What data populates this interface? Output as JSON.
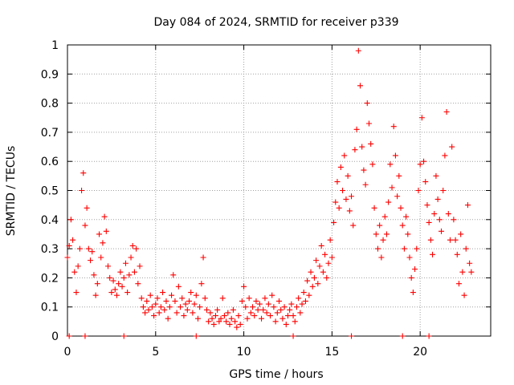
{
  "chart_data": {
    "type": "scatter",
    "title": "Day 084 of 2024, SRMTID for receiver p339",
    "xlabel": "GPS time / hours",
    "ylabel": "SRMTID / TECUs",
    "xlim": [
      0,
      24
    ],
    "ylim": [
      0,
      1
    ],
    "x_ticks": [
      0,
      5,
      10,
      15,
      20
    ],
    "y_ticks": [
      0,
      0.1,
      0.2,
      0.3,
      0.4,
      0.5,
      0.6,
      0.7,
      0.8,
      0.9,
      1
    ],
    "x_tick_labels": [
      "0",
      "5",
      "10",
      "15",
      "20"
    ],
    "y_tick_labels": [
      "0",
      "0.1",
      "0.2",
      "0.3",
      "0.4",
      "0.5",
      "0.6",
      "0.7",
      "0.8",
      "0.9",
      "1"
    ],
    "grid": true,
    "marker": "plus",
    "color": "#ff0000",
    "series": [
      {
        "name": "SRMTID",
        "points": [
          [
            0.0,
            0.27
          ],
          [
            0.1,
            0.31
          ],
          [
            0.2,
            0.4
          ],
          [
            0.3,
            0.33
          ],
          [
            0.4,
            0.22
          ],
          [
            0.5,
            0.15
          ],
          [
            0.6,
            0.24
          ],
          [
            0.7,
            0.3
          ],
          [
            0.8,
            0.5
          ],
          [
            0.9,
            0.56
          ],
          [
            1.0,
            0.38
          ],
          [
            1.1,
            0.44
          ],
          [
            1.2,
            0.3
          ],
          [
            1.3,
            0.26
          ],
          [
            1.4,
            0.29
          ],
          [
            1.5,
            0.21
          ],
          [
            1.6,
            0.14
          ],
          [
            1.7,
            0.18
          ],
          [
            1.8,
            0.35
          ],
          [
            1.9,
            0.27
          ],
          [
            2.0,
            0.32
          ],
          [
            2.1,
            0.41
          ],
          [
            2.2,
            0.36
          ],
          [
            2.3,
            0.24
          ],
          [
            2.4,
            0.2
          ],
          [
            2.5,
            0.15
          ],
          [
            2.6,
            0.19
          ],
          [
            2.7,
            0.16
          ],
          [
            2.8,
            0.14
          ],
          [
            2.9,
            0.18
          ],
          [
            3.0,
            0.22
          ],
          [
            3.1,
            0.17
          ],
          [
            3.2,
            0.2
          ],
          [
            3.3,
            0.25
          ],
          [
            3.4,
            0.15
          ],
          [
            3.5,
            0.21
          ],
          [
            3.6,
            0.27
          ],
          [
            3.7,
            0.31
          ],
          [
            3.8,
            0.22
          ],
          [
            3.9,
            0.3
          ],
          [
            4.0,
            0.18
          ],
          [
            4.1,
            0.24
          ],
          [
            4.2,
            0.13
          ],
          [
            4.3,
            0.1
          ],
          [
            4.4,
            0.08
          ],
          [
            4.5,
            0.12
          ],
          [
            4.6,
            0.09
          ],
          [
            4.7,
            0.14
          ],
          [
            4.8,
            0.1
          ],
          [
            4.9,
            0.07
          ],
          [
            5.0,
            0.11
          ],
          [
            5.1,
            0.13
          ],
          [
            5.2,
            0.08
          ],
          [
            5.3,
            0.1
          ],
          [
            5.4,
            0.15
          ],
          [
            5.5,
            0.09
          ],
          [
            5.6,
            0.12
          ],
          [
            5.7,
            0.06
          ],
          [
            5.8,
            0.1
          ],
          [
            5.9,
            0.14
          ],
          [
            6.0,
            0.21
          ],
          [
            6.1,
            0.12
          ],
          [
            6.2,
            0.08
          ],
          [
            6.3,
            0.17
          ],
          [
            6.4,
            0.1
          ],
          [
            6.5,
            0.13
          ],
          [
            6.6,
            0.07
          ],
          [
            6.7,
            0.11
          ],
          [
            6.8,
            0.09
          ],
          [
            6.9,
            0.12
          ],
          [
            7.0,
            0.15
          ],
          [
            7.1,
            0.08
          ],
          [
            7.2,
            0.11
          ],
          [
            7.3,
            0.14
          ],
          [
            7.4,
            0.06
          ],
          [
            7.5,
            0.1
          ],
          [
            7.6,
            0.18
          ],
          [
            7.7,
            0.27
          ],
          [
            7.8,
            0.13
          ],
          [
            7.9,
            0.09
          ],
          [
            8.0,
            0.05
          ],
          [
            8.1,
            0.08
          ],
          [
            8.2,
            0.06
          ],
          [
            8.3,
            0.04
          ],
          [
            8.4,
            0.07
          ],
          [
            8.5,
            0.09
          ],
          [
            8.6,
            0.05
          ],
          [
            8.7,
            0.06
          ],
          [
            8.8,
            0.13
          ],
          [
            8.9,
            0.07
          ],
          [
            9.0,
            0.05
          ],
          [
            9.1,
            0.08
          ],
          [
            9.2,
            0.04
          ],
          [
            9.3,
            0.06
          ],
          [
            9.4,
            0.09
          ],
          [
            9.5,
            0.05
          ],
          [
            9.6,
            0.03
          ],
          [
            9.7,
            0.07
          ],
          [
            9.8,
            0.04
          ],
          [
            9.9,
            0.12
          ],
          [
            10.0,
            0.17
          ],
          [
            10.1,
            0.1
          ],
          [
            10.2,
            0.06
          ],
          [
            10.3,
            0.13
          ],
          [
            10.4,
            0.08
          ],
          [
            10.5,
            0.1
          ],
          [
            10.6,
            0.07
          ],
          [
            10.7,
            0.12
          ],
          [
            10.8,
            0.09
          ],
          [
            10.9,
            0.11
          ],
          [
            11.0,
            0.06
          ],
          [
            11.1,
            0.09
          ],
          [
            11.2,
            0.13
          ],
          [
            11.3,
            0.08
          ],
          [
            11.4,
            0.11
          ],
          [
            11.5,
            0.07
          ],
          [
            11.6,
            0.14
          ],
          [
            11.7,
            0.1
          ],
          [
            11.8,
            0.05
          ],
          [
            11.9,
            0.08
          ],
          [
            12.0,
            0.12
          ],
          [
            12.1,
            0.09
          ],
          [
            12.2,
            0.06
          ],
          [
            12.3,
            0.1
          ],
          [
            12.4,
            0.04
          ],
          [
            12.5,
            0.07
          ],
          [
            12.6,
            0.09
          ],
          [
            12.7,
            0.11
          ],
          [
            12.8,
            0.07
          ],
          [
            12.9,
            0.05
          ],
          [
            13.0,
            0.1
          ],
          [
            13.1,
            0.13
          ],
          [
            13.2,
            0.08
          ],
          [
            13.3,
            0.11
          ],
          [
            13.4,
            0.15
          ],
          [
            13.5,
            0.12
          ],
          [
            13.6,
            0.19
          ],
          [
            13.7,
            0.14
          ],
          [
            13.8,
            0.22
          ],
          [
            13.9,
            0.17
          ],
          [
            14.0,
            0.2
          ],
          [
            14.1,
            0.26
          ],
          [
            14.2,
            0.18
          ],
          [
            14.3,
            0.24
          ],
          [
            14.4,
            0.31
          ],
          [
            14.5,
            0.22
          ],
          [
            14.6,
            0.28
          ],
          [
            14.7,
            0.2
          ],
          [
            14.8,
            0.25
          ],
          [
            14.9,
            0.33
          ],
          [
            15.0,
            0.27
          ],
          [
            15.1,
            0.39
          ],
          [
            15.2,
            0.46
          ],
          [
            15.3,
            0.53
          ],
          [
            15.4,
            0.44
          ],
          [
            15.5,
            0.58
          ],
          [
            15.6,
            0.5
          ],
          [
            15.7,
            0.62
          ],
          [
            15.8,
            0.47
          ],
          [
            15.9,
            0.55
          ],
          [
            16.0,
            0.43
          ],
          [
            16.1,
            0.48
          ],
          [
            16.2,
            0.38
          ],
          [
            16.3,
            0.64
          ],
          [
            16.4,
            0.71
          ],
          [
            16.5,
            0.98
          ],
          [
            16.6,
            0.86
          ],
          [
            16.7,
            0.65
          ],
          [
            16.8,
            0.57
          ],
          [
            16.9,
            0.52
          ],
          [
            17.0,
            0.8
          ],
          [
            17.1,
            0.73
          ],
          [
            17.2,
            0.66
          ],
          [
            17.3,
            0.59
          ],
          [
            17.4,
            0.44
          ],
          [
            17.5,
            0.35
          ],
          [
            17.6,
            0.3
          ],
          [
            17.7,
            0.38
          ],
          [
            17.8,
            0.27
          ],
          [
            17.9,
            0.33
          ],
          [
            18.0,
            0.41
          ],
          [
            18.1,
            0.35
          ],
          [
            18.2,
            0.46
          ],
          [
            18.3,
            0.59
          ],
          [
            18.4,
            0.51
          ],
          [
            18.5,
            0.72
          ],
          [
            18.6,
            0.62
          ],
          [
            18.7,
            0.48
          ],
          [
            18.8,
            0.55
          ],
          [
            18.9,
            0.44
          ],
          [
            19.0,
            0.38
          ],
          [
            19.1,
            0.3
          ],
          [
            19.2,
            0.41
          ],
          [
            19.3,
            0.35
          ],
          [
            19.4,
            0.27
          ],
          [
            19.5,
            0.2
          ],
          [
            19.6,
            0.15
          ],
          [
            19.7,
            0.23
          ],
          [
            19.8,
            0.3
          ],
          [
            19.9,
            0.5
          ],
          [
            20.0,
            0.59
          ],
          [
            20.1,
            0.75
          ],
          [
            20.2,
            0.6
          ],
          [
            20.3,
            0.53
          ],
          [
            20.4,
            0.45
          ],
          [
            20.5,
            0.39
          ],
          [
            20.6,
            0.33
          ],
          [
            20.7,
            0.28
          ],
          [
            20.8,
            0.42
          ],
          [
            20.9,
            0.55
          ],
          [
            21.0,
            0.47
          ],
          [
            21.1,
            0.4
          ],
          [
            21.2,
            0.36
          ],
          [
            21.3,
            0.5
          ],
          [
            21.4,
            0.62
          ],
          [
            21.5,
            0.77
          ],
          [
            21.6,
            0.42
          ],
          [
            21.7,
            0.33
          ],
          [
            21.8,
            0.65
          ],
          [
            21.9,
            0.4
          ],
          [
            22.0,
            0.33
          ],
          [
            22.1,
            0.28
          ],
          [
            22.2,
            0.18
          ],
          [
            22.3,
            0.35
          ],
          [
            22.4,
            0.22
          ],
          [
            22.5,
            0.14
          ],
          [
            22.6,
            0.3
          ],
          [
            22.7,
            0.45
          ],
          [
            22.8,
            0.25
          ],
          [
            22.9,
            0.22
          ]
        ]
      }
    ],
    "baseline_markers_x": [
      0.1,
      1.0,
      3.2,
      7.3,
      12.8,
      16.1,
      19.0,
      20.5
    ]
  }
}
